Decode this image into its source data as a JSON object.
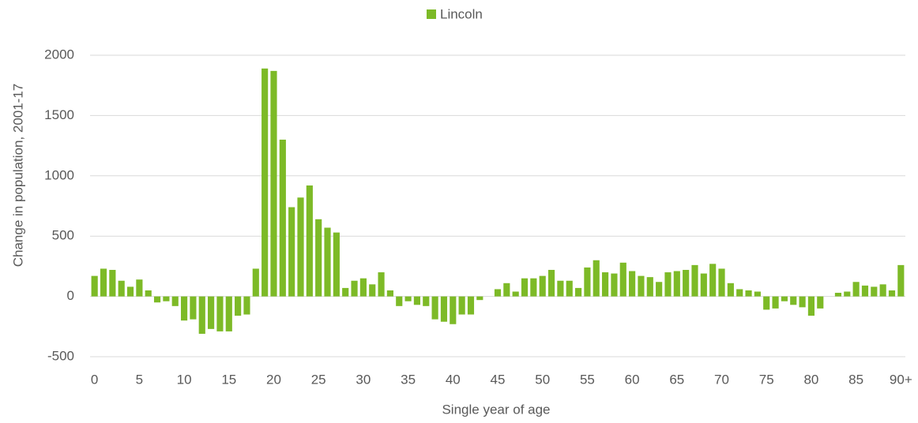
{
  "chart_data": {
    "type": "bar",
    "x_label": "Single year of age",
    "y_label": "Change in population, 2001-17",
    "legend": "top",
    "grid": true,
    "ylim": [
      -500,
      2000
    ],
    "yticks": [
      -500,
      0,
      500,
      1000,
      1500,
      2000
    ],
    "categories": [
      "0",
      null,
      null,
      null,
      null,
      "5",
      null,
      null,
      null,
      null,
      "10",
      null,
      null,
      null,
      null,
      "15",
      null,
      null,
      null,
      null,
      "20",
      null,
      null,
      null,
      null,
      "25",
      null,
      null,
      null,
      null,
      "30",
      null,
      null,
      null,
      null,
      "35",
      null,
      null,
      null,
      null,
      "40",
      null,
      null,
      null,
      null,
      "45",
      null,
      null,
      null,
      null,
      "50",
      null,
      null,
      null,
      null,
      "55",
      null,
      null,
      null,
      null,
      "60",
      null,
      null,
      null,
      null,
      "65",
      null,
      null,
      null,
      null,
      "70",
      null,
      null,
      null,
      null,
      "75",
      null,
      null,
      null,
      null,
      "80",
      null,
      null,
      null,
      null,
      "85",
      null,
      null,
      null,
      null,
      "90+"
    ],
    "series": [
      {
        "name": "Lincoln",
        "color": "#7dba27",
        "values": [
          170,
          230,
          220,
          130,
          80,
          140,
          50,
          -50,
          -40,
          -80,
          -200,
          -190,
          -310,
          -270,
          -290,
          -290,
          -160,
          -150,
          230,
          1890,
          1870,
          1300,
          740,
          820,
          920,
          640,
          570,
          530,
          70,
          130,
          150,
          100,
          200,
          50,
          -80,
          -40,
          -70,
          -80,
          -190,
          -210,
          -230,
          -150,
          -150,
          -30,
          0,
          60,
          110,
          40,
          150,
          150,
          170,
          220,
          130,
          130,
          70,
          240,
          300,
          200,
          190,
          280,
          210,
          170,
          160,
          120,
          200,
          210,
          220,
          260,
          190,
          270,
          230,
          110,
          60,
          50,
          40,
          -110,
          -100,
          -40,
          -70,
          -90,
          -160,
          -100,
          0,
          30,
          40,
          120,
          90,
          80,
          100,
          50,
          260
        ]
      }
    ]
  }
}
